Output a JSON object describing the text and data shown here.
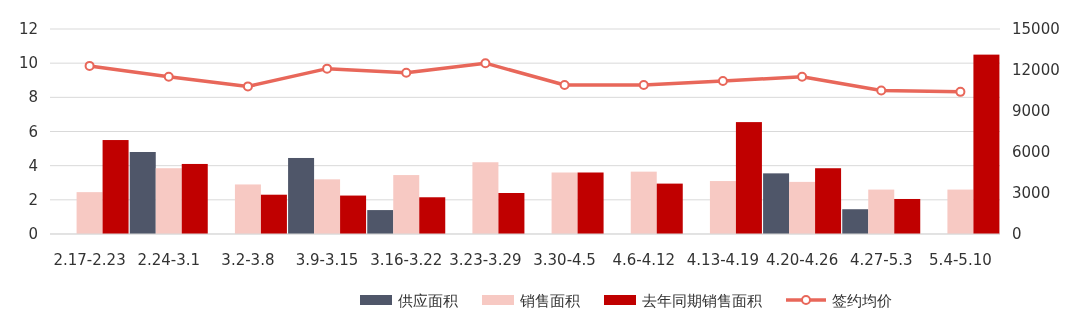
{
  "chart_data": {
    "type": "bar",
    "categories": [
      "2.17-2.23",
      "2.24-3.1",
      "3.2-3.8",
      "3.9-3.15",
      "3.16-3.22",
      "3.23-3.29",
      "3.30-4.5",
      "4.6-4.12",
      "4.13-4.19",
      "4.20-4.26",
      "4.27-5.3",
      "5.4-5.10"
    ],
    "series": [
      {
        "name": "供应面积",
        "color": "#4f5669",
        "values": [
          null,
          4.8,
          null,
          4.45,
          1.4,
          null,
          null,
          null,
          null,
          3.55,
          1.45,
          null
        ]
      },
      {
        "name": "销售面积",
        "color": "#f7c9c3",
        "values": [
          2.45,
          3.85,
          2.9,
          3.2,
          3.45,
          4.2,
          3.6,
          3.65,
          3.1,
          3.05,
          2.6,
          2.6
        ]
      },
      {
        "name": "去年同期销售面积",
        "color": "#c00000",
        "values": [
          5.5,
          4.1,
          2.3,
          2.25,
          2.15,
          2.4,
          3.6,
          2.95,
          6.55,
          3.85,
          2.05,
          10.5
        ]
      },
      {
        "name": "签约均价",
        "color": "#e8675a",
        "type": "line",
        "axis": "y2",
        "marker": "circle",
        "values": [
          12300,
          11500,
          10800,
          12100,
          11800,
          12500,
          10900,
          10900,
          11200,
          11500,
          10500,
          10400
        ]
      }
    ],
    "ylim": [
      0,
      12
    ],
    "yticks": [
      0,
      2,
      4,
      6,
      8,
      10,
      12
    ],
    "y2lim": [
      0,
      15000
    ],
    "y2ticks": [
      0,
      3000,
      6000,
      9000,
      12000,
      15000
    ],
    "grid": "y",
    "legend": "bottom"
  }
}
